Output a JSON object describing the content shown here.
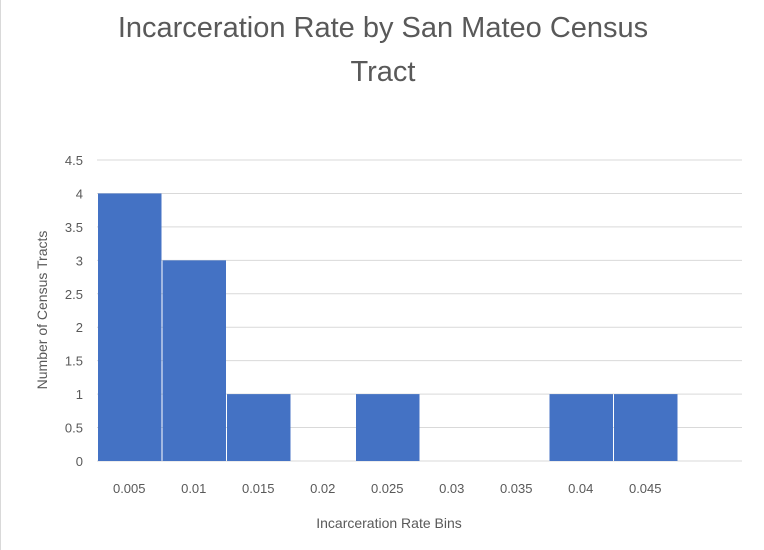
{
  "chart_data": {
    "type": "bar",
    "title_lines": [
      "Incarceration Rate by San Mateo Census",
      "Tract"
    ],
    "xlabel": "Incarceration Rate Bins",
    "ylabel": "Number of Census Tracts",
    "categories": [
      "0.005",
      "0.01",
      "0.015",
      "0.02",
      "0.025",
      "0.03",
      "0.035",
      "0.04",
      "0.045"
    ],
    "values": [
      4,
      3,
      1,
      0,
      1,
      0,
      0,
      1,
      1
    ],
    "ylim": [
      0,
      4.5
    ],
    "yticks": [
      "0",
      "0.5",
      "1",
      "1.5",
      "2",
      "2.5",
      "3",
      "3.5",
      "4",
      "4.5"
    ],
    "grid": "horizontal",
    "bar_color": "#4472c4",
    "legend": "none"
  }
}
